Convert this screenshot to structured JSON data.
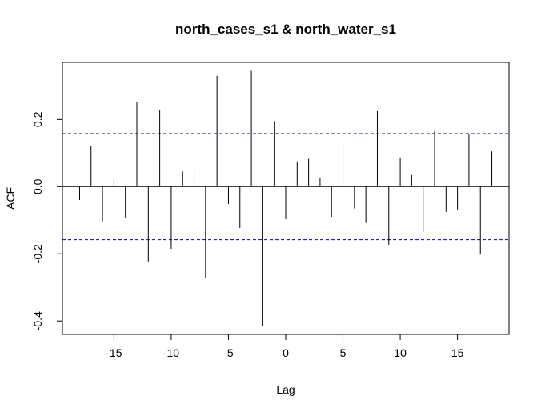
{
  "chart_data": {
    "type": "bar",
    "title": "north_cases_s1 & north_water_s1",
    "xlabel": "Lag",
    "ylabel": "ACF",
    "xlim": [
      -19.5,
      19.5
    ],
    "ylim": [
      -0.44,
      0.37
    ],
    "x_ticks": [
      -15,
      -10,
      -5,
      0,
      5,
      10,
      15
    ],
    "x_tick_labels": [
      "-15",
      "-10",
      "-5",
      "0",
      "5",
      "10",
      "15"
    ],
    "y_ticks": [
      -0.4,
      -0.2,
      0.0,
      0.2
    ],
    "y_tick_labels": [
      "-0.4",
      "-0.2",
      "0.0",
      "0.2"
    ],
    "confidence_bound": 0.158,
    "line_color": "#000000",
    "bound_color": "#0000cc",
    "lags": [
      -18,
      -17,
      -16,
      -15,
      -14,
      -13,
      -12,
      -11,
      -10,
      -9,
      -8,
      -7,
      -6,
      -5,
      -4,
      -3,
      -2,
      -1,
      0,
      1,
      2,
      3,
      4,
      5,
      6,
      7,
      8,
      9,
      10,
      11,
      12,
      13,
      14,
      15,
      16,
      17,
      18
    ],
    "values": [
      -0.04,
      0.12,
      -0.103,
      0.02,
      -0.093,
      0.253,
      -0.223,
      0.228,
      -0.185,
      0.045,
      0.05,
      -0.273,
      0.33,
      -0.052,
      -0.123,
      0.345,
      -0.415,
      0.195,
      -0.097,
      0.075,
      0.083,
      0.025,
      -0.09,
      0.125,
      -0.065,
      -0.108,
      0.225,
      -0.173,
      0.087,
      0.035,
      -0.135,
      0.165,
      -0.075,
      -0.068,
      0.155,
      -0.202,
      0.105
    ]
  }
}
